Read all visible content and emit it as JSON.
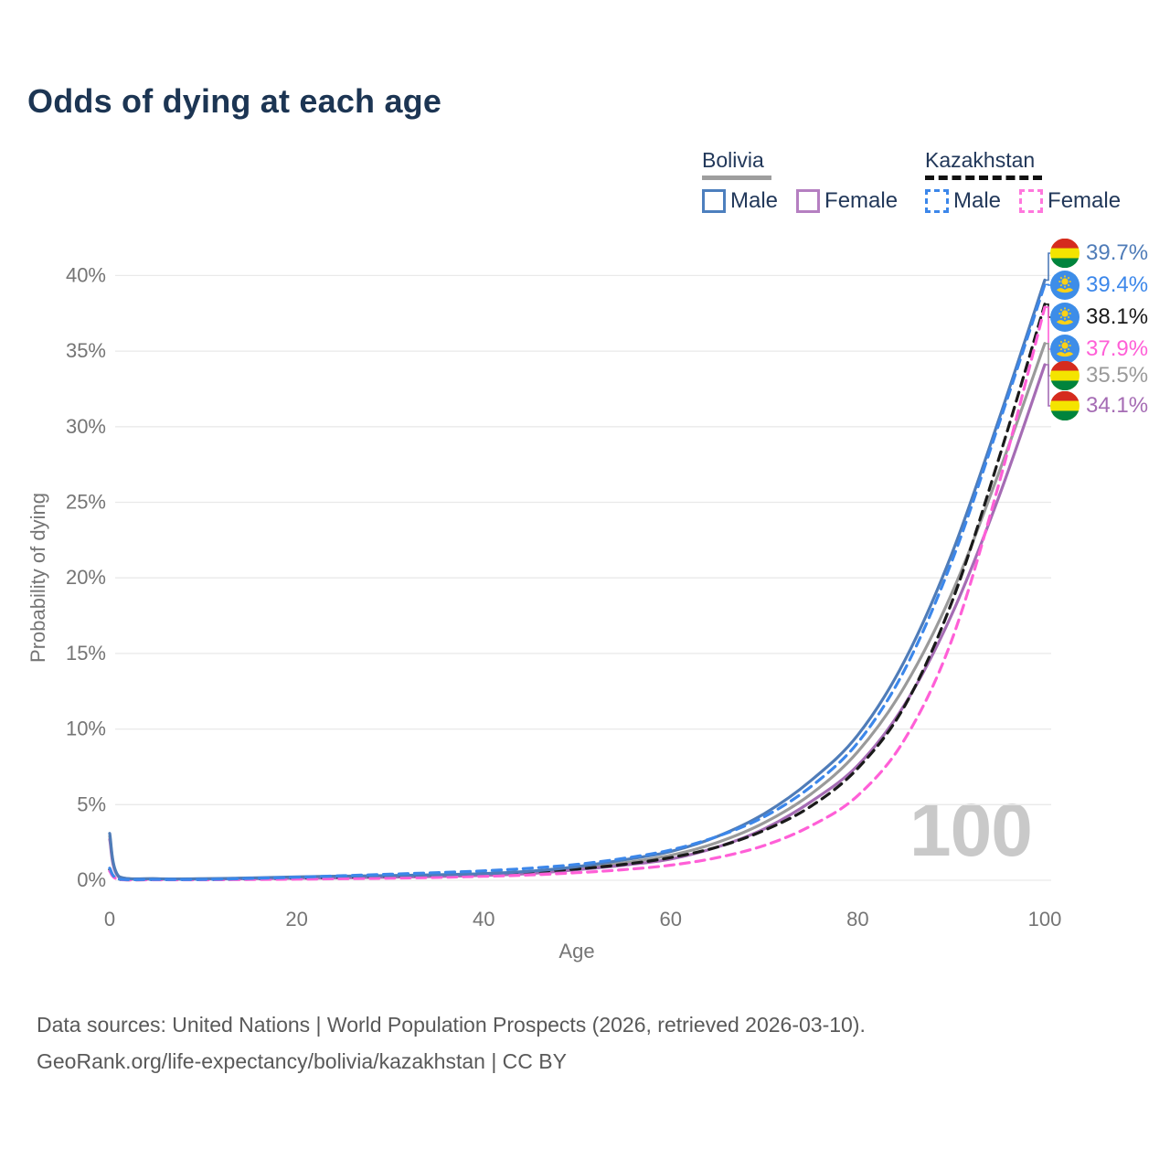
{
  "title": "Odds of dying at each age",
  "watermark_age": "100",
  "legend": {
    "groups": [
      {
        "country": "Bolivia",
        "line_style": "solid",
        "underline_color": "#9e9e9e",
        "items": [
          {
            "label": "Male",
            "color": "#4d7fbe"
          },
          {
            "label": "Female",
            "color": "#b57fc1"
          }
        ]
      },
      {
        "country": "Kazakhstan",
        "line_style": "dashed",
        "underline_color": "#111111",
        "items": [
          {
            "label": "Male",
            "color": "#3c87ea"
          },
          {
            "label": "Female",
            "color": "#ff77dd"
          }
        ]
      }
    ]
  },
  "axes": {
    "x_label": "Age",
    "y_label": "Probability of dying",
    "x_ticks": [
      {
        "value": 0,
        "label": "0"
      },
      {
        "value": 20,
        "label": "20"
      },
      {
        "value": 40,
        "label": "40"
      },
      {
        "value": 60,
        "label": "60"
      },
      {
        "value": 80,
        "label": "80"
      },
      {
        "value": 100,
        "label": "100"
      }
    ],
    "y_ticks": [
      {
        "value": 0,
        "label": "0%"
      },
      {
        "value": 5,
        "label": "5%"
      },
      {
        "value": 10,
        "label": "10%"
      },
      {
        "value": 15,
        "label": "15%"
      },
      {
        "value": 20,
        "label": "20%"
      },
      {
        "value": 25,
        "label": "25%"
      },
      {
        "value": 30,
        "label": "30%"
      },
      {
        "value": 35,
        "label": "35%"
      },
      {
        "value": 40,
        "label": "40%"
      }
    ]
  },
  "footer": {
    "line1": "Data sources: United Nations | World Population Prospects (2026, retrieved 2026-03-10).",
    "line2": "GeoRank.org/life-expectancy/bolivia/kazakhstan | CC BY"
  },
  "chart_data": {
    "type": "line",
    "title": "Odds of dying at each age",
    "xlabel": "Age",
    "ylabel": "Probability of dying",
    "xlim": [
      0,
      100
    ],
    "ylim": [
      0,
      40
    ],
    "grid": "horizontal-only",
    "x": [
      0,
      1,
      5,
      10,
      15,
      20,
      25,
      30,
      35,
      40,
      45,
      50,
      55,
      60,
      65,
      70,
      75,
      80,
      85,
      90,
      95,
      100
    ],
    "series": [
      {
        "name": "Bolivia (both sexes)",
        "country": "Bolivia",
        "sex": "both",
        "color": "#9a9a9a",
        "line_style": "solid",
        "flag": "bolivia",
        "end_label": "35.5%",
        "values": [
          2.9,
          0.22,
          0.09,
          0.09,
          0.12,
          0.17,
          0.21,
          0.25,
          0.3,
          0.37,
          0.5,
          0.8,
          1.15,
          1.65,
          2.5,
          3.8,
          5.7,
          8.5,
          12.8,
          18.9,
          26.8,
          35.5
        ]
      },
      {
        "name": "Bolivia Female",
        "country": "Bolivia",
        "sex": "female",
        "color": "#a56cb4",
        "line_style": "solid",
        "flag": "bolivia",
        "end_label": "34.1%",
        "values": [
          2.7,
          0.2,
          0.08,
          0.08,
          0.1,
          0.13,
          0.16,
          0.2,
          0.25,
          0.32,
          0.45,
          0.7,
          1.0,
          1.4,
          2.2,
          3.4,
          5.2,
          7.6,
          11.6,
          17.5,
          25.2,
          34.1
        ]
      },
      {
        "name": "Kazakhstan (both sexes)",
        "country": "Kazakhstan",
        "sex": "both",
        "color": "#1a1a1a",
        "line_style": "dashed",
        "flag": "kazakhstan",
        "end_label": "38.1%",
        "values": [
          0.7,
          0.06,
          0.04,
          0.04,
          0.08,
          0.13,
          0.19,
          0.26,
          0.34,
          0.44,
          0.57,
          0.75,
          1.05,
          1.5,
          2.2,
          3.3,
          4.9,
          7.4,
          11.5,
          18.3,
          27.7,
          38.1
        ]
      },
      {
        "name": "Kazakhstan Female",
        "country": "Kazakhstan",
        "sex": "female",
        "color": "#ff5fd7",
        "line_style": "dashed",
        "flag": "kazakhstan",
        "end_label": "37.9%",
        "values": [
          0.6,
          0.05,
          0.03,
          0.03,
          0.05,
          0.07,
          0.1,
          0.14,
          0.19,
          0.26,
          0.35,
          0.5,
          0.7,
          1.0,
          1.5,
          2.3,
          3.6,
          5.6,
          9.3,
          15.8,
          26.0,
          37.9
        ]
      },
      {
        "name": "Bolivia Male",
        "country": "Bolivia",
        "sex": "male",
        "color": "#4f7cb8",
        "line_style": "solid",
        "flag": "bolivia",
        "end_label": "39.7%",
        "values": [
          3.1,
          0.25,
          0.1,
          0.1,
          0.15,
          0.22,
          0.27,
          0.31,
          0.36,
          0.44,
          0.6,
          0.9,
          1.35,
          1.9,
          2.9,
          4.4,
          6.6,
          9.6,
          14.5,
          21.5,
          30.3,
          39.7
        ]
      },
      {
        "name": "Kazakhstan Male",
        "country": "Kazakhstan",
        "sex": "male",
        "color": "#3c87ea",
        "line_style": "dashed",
        "flag": "kazakhstan",
        "end_label": "39.4%",
        "values": [
          0.8,
          0.07,
          0.05,
          0.05,
          0.12,
          0.2,
          0.3,
          0.4,
          0.5,
          0.62,
          0.8,
          1.05,
          1.45,
          2.0,
          2.9,
          4.2,
          6.2,
          9.1,
          13.9,
          21.0,
          30.0,
          39.4
        ]
      }
    ]
  }
}
